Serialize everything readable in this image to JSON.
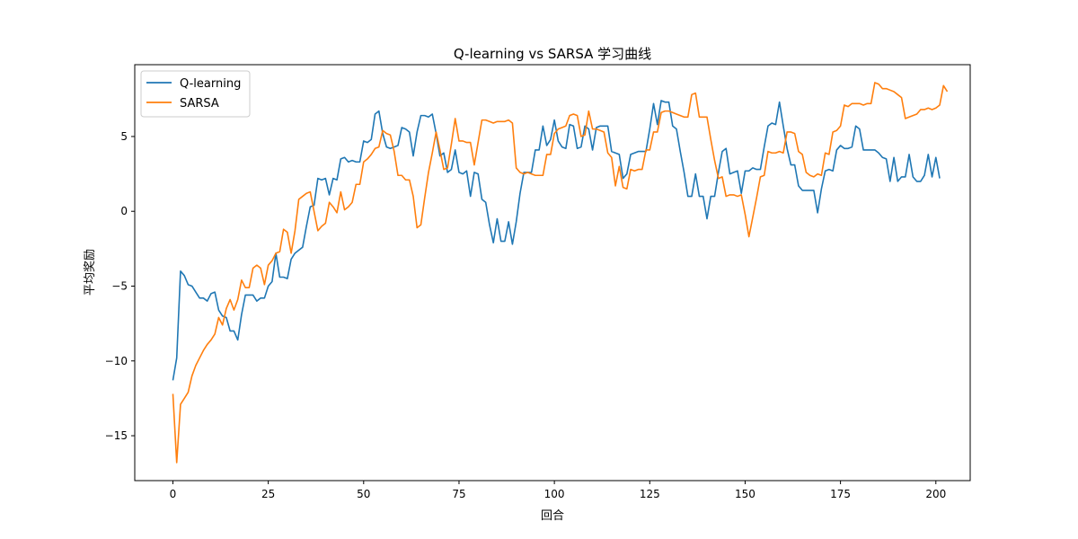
{
  "chart_data": {
    "type": "line",
    "title": "Q-learning vs SARSA 学习曲线",
    "xlabel": "回合",
    "ylabel": "平均奖励",
    "xlim": [
      -10,
      209
    ],
    "ylim": [
      -18,
      9.8
    ],
    "xticks": [
      0,
      25,
      50,
      75,
      100,
      125,
      150,
      175,
      200
    ],
    "yticks": [
      -15,
      -10,
      -5,
      0,
      5
    ],
    "grid": false,
    "legend_position": "top-left",
    "series": [
      {
        "name": "Q-learning",
        "color": "#1f77b4",
        "values": [
          -11.3,
          -9.8,
          -4.0,
          -4.3,
          -4.9,
          -5.0,
          -5.4,
          -5.8,
          -5.8,
          -6.0,
          -5.5,
          -5.4,
          -6.6,
          -7.0,
          -7.1,
          -8.0,
          -8.0,
          -8.6,
          -6.9,
          -5.6,
          -5.6,
          -5.6,
          -6.0,
          -5.8,
          -5.8,
          -5.0,
          -4.7,
          -2.8,
          -4.4,
          -4.4,
          -4.5,
          -3.2,
          -2.8,
          -2.6,
          -2.4,
          -1.0,
          0.3,
          0.4,
          2.2,
          2.1,
          2.2,
          1.1,
          2.2,
          2.1,
          3.5,
          3.6,
          3.3,
          3.4,
          3.3,
          3.3,
          4.7,
          4.6,
          4.8,
          6.5,
          6.7,
          5.2,
          4.3,
          4.2,
          4.3,
          4.4,
          5.6,
          5.5,
          5.3,
          3.7,
          5.3,
          6.4,
          6.4,
          6.3,
          6.5,
          5.2,
          3.7,
          3.9,
          2.6,
          2.8,
          4.1,
          2.6,
          2.5,
          2.7,
          1.0,
          2.6,
          2.5,
          0.8,
          0.6,
          -0.9,
          -2.1,
          -0.5,
          -2.0,
          -2.0,
          -0.7,
          -2.2,
          -0.7,
          1.2,
          2.6,
          2.6,
          2.6,
          4.1,
          4.1,
          5.7,
          4.4,
          4.8,
          6.1,
          4.7,
          4.3,
          4.2,
          5.8,
          5.7,
          4.2,
          4.3,
          5.7,
          5.5,
          4.1,
          5.6,
          5.7,
          5.7,
          5.7,
          4.0,
          3.9,
          3.8,
          2.2,
          2.5,
          3.8,
          3.9,
          4.0,
          4.0,
          4.0,
          5.5,
          7.2,
          5.8,
          7.4,
          7.3,
          7.3,
          5.7,
          5.5,
          4.0,
          2.6,
          1.0,
          1.0,
          2.5,
          1.0,
          1.0,
          -0.5,
          1.0,
          1.0,
          2.6,
          4.0,
          4.2,
          2.5,
          2.6,
          2.7,
          1.2,
          2.7,
          2.7,
          2.9,
          2.8,
          2.8,
          4.3,
          5.7,
          5.9,
          5.8,
          7.3,
          5.7,
          4.2,
          3.1,
          3.1,
          1.7,
          1.4,
          1.4,
          1.4,
          1.4,
          -0.1,
          1.5,
          2.7,
          2.8,
          2.7,
          4.1,
          4.4,
          4.2,
          4.2,
          4.3,
          5.7,
          5.5,
          4.1,
          4.1,
          4.1,
          4.1,
          3.9,
          3.6,
          3.5,
          2.0,
          3.6,
          2.0,
          2.3,
          2.3,
          3.8,
          2.3,
          2.0,
          2.0,
          2.4,
          3.8,
          2.3,
          3.6,
          2.2
        ]
      },
      {
        "name": "SARSA",
        "color": "#ff7f0e",
        "values": [
          -12.2,
          -16.8,
          -12.9,
          -12.5,
          -12.1,
          -11.0,
          -10.3,
          -9.8,
          -9.3,
          -8.9,
          -8.6,
          -8.2,
          -7.1,
          -7.6,
          -6.5,
          -5.9,
          -6.6,
          -5.9,
          -4.6,
          -5.1,
          -5.1,
          -3.8,
          -3.6,
          -3.8,
          -4.9,
          -3.6,
          -3.3,
          -2.8,
          -2.7,
          -1.2,
          -1.4,
          -2.8,
          -1.3,
          0.8,
          1.0,
          1.2,
          1.3,
          0.0,
          -1.3,
          -1.0,
          -0.8,
          0.6,
          0.3,
          -0.1,
          1.3,
          0.1,
          0.3,
          0.6,
          1.8,
          1.8,
          3.3,
          3.5,
          3.8,
          4.2,
          4.3,
          5.4,
          5.2,
          5.1,
          4.0,
          2.4,
          2.4,
          2.1,
          2.1,
          1.0,
          -1.1,
          -0.9,
          0.9,
          2.6,
          3.9,
          5.3,
          4.1,
          2.8,
          2.9,
          4.5,
          6.2,
          4.7,
          4.7,
          4.6,
          4.6,
          3.1,
          4.6,
          6.1,
          6.1,
          6.0,
          5.9,
          6.0,
          6.0,
          6.0,
          6.1,
          5.9,
          2.9,
          2.6,
          2.5,
          2.6,
          2.5,
          2.4,
          2.4,
          2.4,
          3.8,
          3.8,
          5.2,
          5.5,
          5.6,
          5.7,
          6.4,
          6.5,
          6.4,
          5.0,
          5.1,
          6.7,
          5.5,
          5.5,
          5.4,
          5.3,
          3.9,
          3.6,
          1.7,
          3.0,
          1.6,
          1.5,
          2.8,
          2.7,
          2.8,
          2.8,
          4.1,
          4.1,
          5.3,
          5.3,
          6.6,
          6.7,
          6.7,
          6.6,
          6.5,
          6.4,
          6.3,
          6.3,
          7.8,
          7.9,
          6.3,
          6.3,
          6.3,
          4.8,
          3.4,
          2.2,
          2.3,
          1.0,
          1.1,
          1.1,
          1.0,
          1.1,
          -0.2,
          -1.7,
          -0.4,
          0.9,
          2.3,
          2.4,
          4.0,
          3.9,
          3.9,
          4.0,
          3.9,
          5.3,
          5.3,
          5.2,
          4.0,
          3.8,
          2.6,
          2.4,
          2.3,
          2.5,
          2.4,
          3.9,
          3.8,
          5.3,
          5.4,
          5.7,
          7.1,
          7.0,
          7.2,
          7.2,
          7.2,
          7.1,
          7.2,
          7.2,
          8.6,
          8.5,
          8.2,
          8.2,
          8.1,
          8.0,
          7.8,
          7.6,
          6.2,
          6.3,
          6.4,
          6.5,
          6.8,
          6.8,
          6.9,
          6.8,
          6.9,
          7.1,
          8.4,
          8.0
        ]
      }
    ]
  }
}
